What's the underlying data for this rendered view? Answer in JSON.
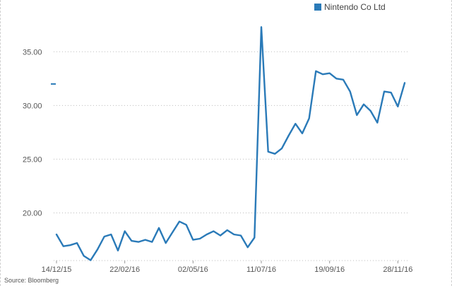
{
  "chart_data": {
    "type": "line",
    "title": "",
    "xlabel": "",
    "ylabel": "",
    "ylim": [
      15.5,
      38.5
    ],
    "yticks": [
      "35.00",
      "30.00",
      "25.00",
      "20.00"
    ],
    "ytick_values": [
      35,
      30,
      25,
      20
    ],
    "xtick_labels": [
      "14/12/15",
      "22/02/16",
      "02/05/16",
      "11/07/16",
      "19/09/16",
      "28/11/16"
    ],
    "xtick_indices": [
      0,
      10,
      20,
      30,
      40,
      50
    ],
    "grid": "horizontal dotted",
    "legend_placement": "top-right",
    "series": [
      {
        "name": "Nintendo Co Ltd",
        "color": "#2a7ab8",
        "values": [
          18.0,
          16.9,
          17.0,
          17.2,
          16.0,
          15.6,
          16.6,
          17.8,
          18.0,
          16.5,
          18.3,
          17.4,
          17.3,
          17.5,
          17.3,
          18.6,
          17.2,
          18.2,
          19.2,
          18.9,
          17.5,
          17.6,
          18.0,
          18.3,
          17.9,
          18.4,
          18.0,
          17.9,
          16.8,
          17.7,
          37.3,
          25.7,
          25.5,
          26.0,
          27.2,
          28.3,
          27.4,
          28.8,
          33.2,
          32.9,
          33.0,
          32.5,
          32.4,
          31.3,
          29.1,
          30.1,
          29.5,
          28.4,
          31.3,
          31.2,
          29.9,
          32.1
        ]
      }
    ],
    "marker_value": 32.0
  },
  "source": "Source: Bloomberg"
}
